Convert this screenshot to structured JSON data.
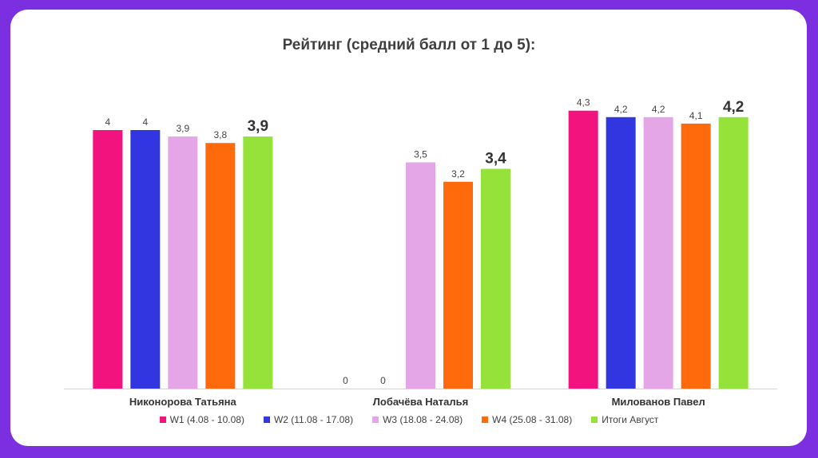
{
  "chart_data": {
    "type": "bar",
    "title": "Рейтинг (средний балл от 1 до 5):",
    "categories": [
      "Никонорова Татьяна",
      "Лобачёва Наталья",
      "Милованов Павел"
    ],
    "series": [
      {
        "name": "W1 (4.08 - 10.08)",
        "color": "#f2137f",
        "values": [
          4,
          0,
          4.3
        ],
        "labels": [
          "4",
          "0",
          "4,3"
        ]
      },
      {
        "name": "W2 (11.08 - 17.08)",
        "color": "#3236e0",
        "values": [
          4,
          0,
          4.2
        ],
        "labels": [
          "4",
          "0",
          "4,2"
        ]
      },
      {
        "name": "W3 (18.08 - 24.08)",
        "color": "#e4a6e6",
        "values": [
          3.9,
          3.5,
          4.2
        ],
        "labels": [
          "3,9",
          "3,5",
          "4,2"
        ]
      },
      {
        "name": "W4 (25.08 - 31.08)",
        "color": "#ff6a0d",
        "values": [
          3.8,
          3.2,
          4.1
        ],
        "labels": [
          "3,8",
          "3,2",
          "4,1"
        ]
      },
      {
        "name": "Итоги Август",
        "color": "#94e23a",
        "values": [
          3.9,
          3.4,
          4.2
        ],
        "labels": [
          "3,9",
          "3,4",
          "4,2"
        ],
        "emphasis": true
      }
    ],
    "xlabel": "",
    "ylabel": "",
    "ylim": [
      0,
      5
    ],
    "grid": false,
    "legend": "bottom"
  }
}
